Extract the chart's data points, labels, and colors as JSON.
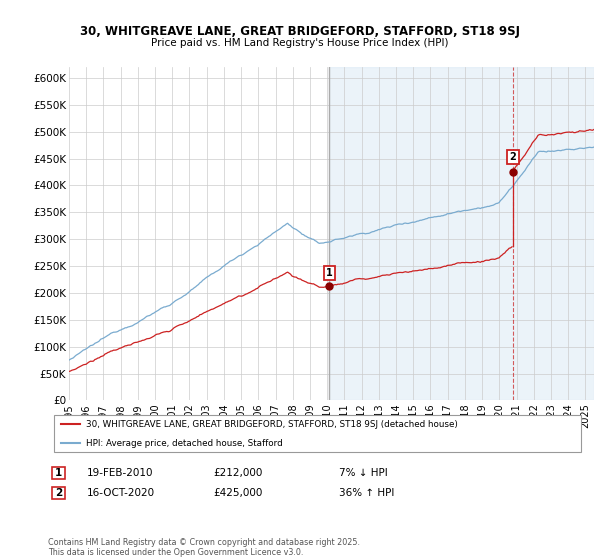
{
  "title_line1": "30, WHITGREAVE LANE, GREAT BRIDGEFORD, STAFFORD, ST18 9SJ",
  "title_line2": "Price paid vs. HM Land Registry's House Price Index (HPI)",
  "ylim": [
    0,
    620000
  ],
  "yticks": [
    0,
    50000,
    100000,
    150000,
    200000,
    250000,
    300000,
    350000,
    400000,
    450000,
    500000,
    550000,
    600000
  ],
  "ytick_labels": [
    "£0",
    "£50K",
    "£100K",
    "£150K",
    "£200K",
    "£250K",
    "£300K",
    "£350K",
    "£400K",
    "£450K",
    "£500K",
    "£550K",
    "£600K"
  ],
  "hpi_color": "#7aabcf",
  "price_color": "#cc2222",
  "vline1_color": "#aaaaaa",
  "vline2_color": "#cc3333",
  "shade_color": "#d8e8f5",
  "annotation_box_color": "#cc2222",
  "sale1_year": 2010,
  "sale1_month": 2,
  "sale1_day": 19,
  "sale1_price": 212000,
  "sale2_year": 2020,
  "sale2_month": 10,
  "sale2_day": 16,
  "sale2_price": 425000,
  "legend_line1": "30, WHITGREAVE LANE, GREAT BRIDGEFORD, STAFFORD, ST18 9SJ (detached house)",
  "legend_line2": "HPI: Average price, detached house, Stafford",
  "note1_date": "19-FEB-2010",
  "note1_price": "£212,000",
  "note1_pct": "7% ↓ HPI",
  "note2_date": "16-OCT-2020",
  "note2_price": "£425,000",
  "note2_pct": "36% ↑ HPI",
  "copyright": "Contains HM Land Registry data © Crown copyright and database right 2025.\nThis data is licensed under the Open Government Licence v3.0.",
  "xstart": 1995,
  "xend": 2025.5
}
